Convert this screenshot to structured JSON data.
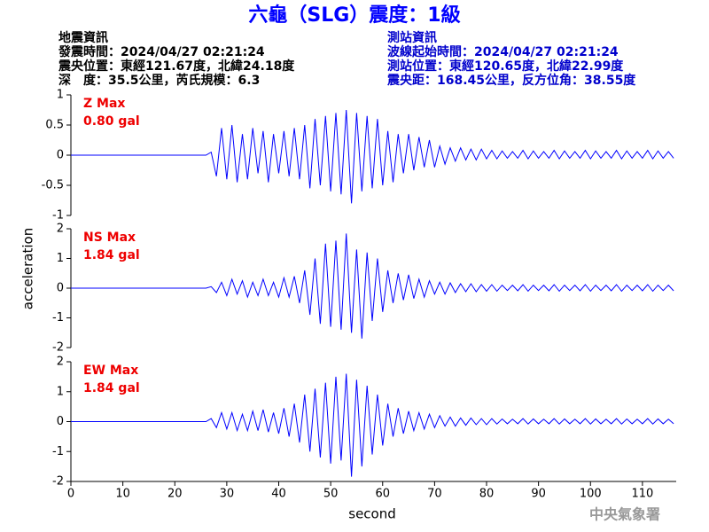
{
  "figure": {
    "title": "六龜（SLG）震度：1級",
    "xlabel": "second",
    "ylabel": "acceleration",
    "watermark": "中央氣象署",
    "left_info": [
      "地震資訊",
      "發震時間：2024/04/27 02:21:24",
      "震央位置：東經121.67度，北緯24.18度",
      "深　度：35.5公里，芮氏規模：6.3"
    ],
    "right_info": [
      "測站資訊",
      "波線起始時間：2024/04/27 02:21:24",
      "測站位置：東經120.65度，北緯22.99度",
      "震央距：168.45公里，反方位角：38.55度"
    ],
    "xlim": [
      0,
      116.5
    ],
    "xticks": [
      0,
      10,
      20,
      30,
      40,
      50,
      60,
      70,
      80,
      90,
      100,
      110
    ],
    "x": [
      0,
      26,
      27,
      28,
      29,
      30,
      31,
      32,
      33,
      34,
      35,
      36,
      37,
      38,
      39,
      40,
      41,
      42,
      43,
      44,
      45,
      46,
      47,
      48,
      49,
      50,
      51,
      52,
      53,
      54,
      55,
      56,
      57,
      58,
      59,
      60,
      61,
      62,
      63,
      64,
      65,
      66,
      67,
      68,
      69,
      70,
      71,
      72,
      73,
      74,
      75,
      76,
      77,
      78,
      79,
      80,
      81,
      82,
      83,
      84,
      85,
      86,
      87,
      88,
      89,
      90,
      91,
      92,
      93,
      94,
      95,
      96,
      97,
      98,
      99,
      100,
      101,
      102,
      103,
      104,
      105,
      106,
      107,
      108,
      109,
      110,
      111,
      112,
      113,
      114,
      115,
      116
    ]
  },
  "chart_data": [
    {
      "type": "line",
      "annotations": [
        "Z Max",
        "0.80 gal"
      ],
      "color": "#0000ff",
      "ylim": [
        -1,
        1
      ],
      "yticks": [
        -1,
        -0.5,
        0,
        0.5,
        1
      ],
      "values": [
        0,
        0,
        0.05,
        -0.35,
        0.45,
        -0.4,
        0.5,
        -0.45,
        0.35,
        -0.4,
        0.45,
        -0.3,
        0.4,
        -0.45,
        0.35,
        -0.3,
        0.4,
        -0.35,
        0.45,
        -0.4,
        0.5,
        -0.55,
        0.6,
        -0.5,
        0.65,
        -0.6,
        0.7,
        -0.65,
        0.75,
        -0.8,
        0.7,
        -0.6,
        0.65,
        -0.55,
        0.6,
        -0.5,
        0.4,
        -0.45,
        0.35,
        -0.3,
        0.35,
        -0.25,
        0.3,
        -0.2,
        0.25,
        -0.2,
        0.15,
        -0.15,
        0.12,
        -0.1,
        0.12,
        -0.08,
        0.1,
        -0.08,
        0.1,
        -0.06,
        0.08,
        -0.06,
        0.07,
        -0.05,
        0.06,
        -0.05,
        0.08,
        -0.06,
        0.07,
        -0.05,
        0.06,
        -0.05,
        0.08,
        -0.06,
        0.07,
        -0.05,
        0.06,
        -0.05,
        0.08,
        -0.06,
        0.07,
        -0.05,
        0.06,
        -0.05,
        0.08,
        -0.06,
        0.07,
        -0.05,
        0.06,
        -0.05,
        0.08,
        -0.06,
        0.07,
        -0.05,
        0.06,
        -0.05
      ]
    },
    {
      "type": "line",
      "annotations": [
        "NS Max",
        "1.84 gal"
      ],
      "color": "#0000ff",
      "ylim": [
        -2,
        2
      ],
      "yticks": [
        -2,
        -1,
        0,
        1,
        2
      ],
      "values": [
        0,
        0,
        0.05,
        -0.15,
        0.2,
        -0.25,
        0.3,
        -0.2,
        0.25,
        -0.3,
        0.2,
        -0.25,
        0.3,
        -0.25,
        0.2,
        -0.3,
        0.35,
        -0.3,
        0.4,
        -0.5,
        0.6,
        -0.9,
        1.0,
        -1.2,
        1.5,
        -1.3,
        1.6,
        -1.4,
        1.84,
        -1.5,
        1.3,
        -1.7,
        1.2,
        -1.1,
        1.0,
        -0.8,
        0.6,
        -0.5,
        0.5,
        -0.4,
        0.45,
        -0.35,
        0.3,
        -0.3,
        0.25,
        -0.2,
        0.2,
        -0.2,
        0.18,
        -0.15,
        0.15,
        -0.12,
        0.15,
        -0.12,
        0.12,
        -0.1,
        0.12,
        -0.1,
        0.1,
        -0.08,
        0.1,
        -0.09,
        0.12,
        -0.1,
        0.1,
        -0.08,
        0.1,
        -0.09,
        0.12,
        -0.1,
        0.1,
        -0.08,
        0.1,
        -0.09,
        0.12,
        -0.1,
        0.1,
        -0.08,
        0.1,
        -0.09,
        0.12,
        -0.1,
        0.1,
        -0.08,
        0.1,
        -0.09,
        0.12,
        -0.1,
        0.1,
        -0.08,
        0.1,
        -0.09
      ]
    },
    {
      "type": "line",
      "annotations": [
        "EW Max",
        "1.84 gal"
      ],
      "color": "#0000ff",
      "ylim": [
        -2,
        2
      ],
      "yticks": [
        -2,
        -1,
        0,
        1,
        2
      ],
      "values": [
        0,
        0,
        0.1,
        -0.2,
        0.3,
        -0.25,
        0.3,
        -0.3,
        0.25,
        -0.3,
        0.35,
        -0.3,
        0.4,
        -0.35,
        0.3,
        -0.4,
        0.45,
        -0.5,
        0.6,
        -0.7,
        0.9,
        -1.0,
        1.1,
        -1.2,
        1.3,
        -1.4,
        1.5,
        -1.3,
        1.6,
        -1.84,
        1.4,
        -1.5,
        1.2,
        -1.1,
        0.9,
        -0.8,
        0.6,
        -0.5,
        0.45,
        -0.4,
        0.35,
        -0.3,
        0.3,
        -0.25,
        0.25,
        -0.2,
        0.2,
        -0.15,
        0.15,
        -0.15,
        0.12,
        -0.12,
        0.12,
        -0.1,
        0.1,
        -0.1,
        0.1,
        -0.08,
        0.09,
        -0.07,
        0.08,
        -0.07,
        0.1,
        -0.08,
        0.09,
        -0.07,
        0.08,
        -0.07,
        0.1,
        -0.08,
        0.09,
        -0.07,
        0.08,
        -0.07,
        0.1,
        -0.08,
        0.09,
        -0.07,
        0.08,
        -0.07,
        0.1,
        -0.08,
        0.09,
        -0.07,
        0.08,
        -0.07,
        0.1,
        -0.08,
        0.09,
        -0.07,
        0.08,
        -0.07
      ]
    }
  ]
}
